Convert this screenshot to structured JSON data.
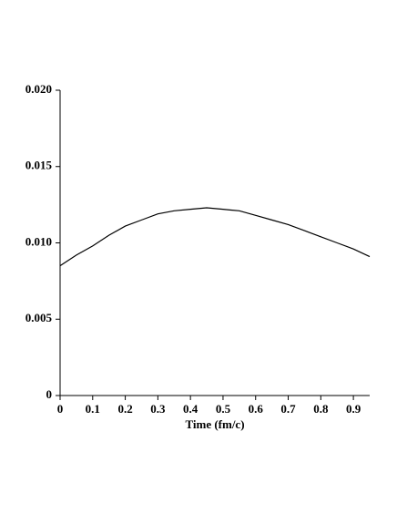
{
  "chart_data": {
    "type": "line",
    "x_label": "Time (fm/c)",
    "x": [
      0,
      0.05,
      0.1,
      0.15,
      0.2,
      0.25,
      0.3,
      0.35,
      0.4,
      0.45,
      0.5,
      0.55,
      0.6,
      0.65,
      0.7,
      0.75,
      0.8,
      0.85,
      0.9,
      0.95
    ],
    "series": [
      {
        "color": "#000000",
        "values": [
          0.0085,
          0.0092,
          0.0098,
          0.0105,
          0.0111,
          0.0115,
          0.0119,
          0.0121,
          0.0122,
          0.0123,
          0.0122,
          0.0121,
          0.0118,
          0.0115,
          0.0112,
          0.0108,
          0.0104,
          0.01,
          0.0096,
          0.0091
        ]
      }
    ],
    "xlim": [
      0,
      0.95
    ],
    "xticks": [
      0,
      0.1,
      0.2,
      0.3,
      0.4,
      0.5,
      0.6,
      0.7,
      0.8,
      0.9
    ],
    "ylim": [
      0,
      0.02
    ],
    "yticks": [
      0,
      0.005,
      {
        "value": 0.01,
        "label": "0.010"
      },
      0.015,
      {
        "value": 0.02,
        "label": "0.020"
      }
    ]
  }
}
